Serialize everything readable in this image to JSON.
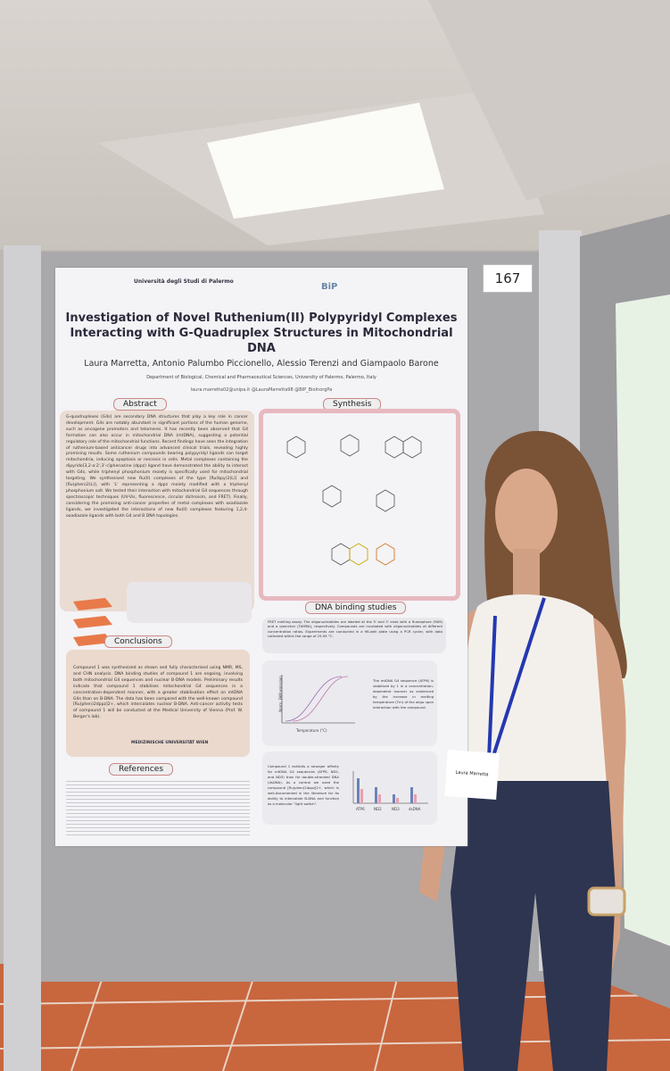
{
  "board_number": "167",
  "poster": {
    "logos": [
      "Università degli Studi di Palermo",
      "BiP"
    ],
    "title": "Investigation of Novel Ruthenium(II) Polypyridyl Complexes Interacting with G-Quadruplex Structures in Mitochondrial DNA",
    "authors": "Laura Marretta, Antonio Palumbo Piccionello, Alessio Terenzi and Giampaolo Barone",
    "affiliation": "Department of Biological, Chemical and Pharmaceutical Sciences, University of Palermo, Palermo, Italy",
    "contacts": "laura.marretta02@unipa.it    @LauraMarretta98    @BIP_BioInorgPa",
    "abstract": {
      "heading": "Abstract",
      "text": "G-quadruplexes (G4s) are secondary DNA structures that play a key role in cancer development. G4s are notably abundant in significant portions of the human genome, such as oncogene promoters and telomeres. It has recently been observed that G4 formation can also occur in mitochondrial DNA (mtDNA), suggesting a potential regulatory role of the mitochondrial functions. Recent findings have seen the integration of ruthenium-based anticancer drugs into advanced clinical trials, revealing highly promising results. Some ruthenium compounds bearing polypyridyl ligands can target mitochondria, inducing apoptosis or necrosis in cells. Metal complexes containing the dipyrido[3,2-a:2',3'-c]phenazine (dppz) ligand have demonstrated the ability to interact with G4s, while triphenyl phosphonium moiety is specifically used for mitochondrial targeting. We synthesised new Ru(II) complexes of the type [Ru(bpy)2(L)] and [Ru(phen)2(L)], with 'L' representing a dppz moiety modified with a triphenyl phosphonium salt. We tested their interaction with mitochondrial G4 sequences through spectroscopic techniques (UV-Vis, fluorescence, circular dichroism, and FRET). Finally, considering the promising anti-cancer properties of metal complexes with oxadiazole ligands, we investigated the interactions of new Ru(II) complexes featuring 1,2,4-oxadiazole ligands with both G4 and B DNA topologies."
    },
    "synthesis": {
      "heading": "Synthesis"
    },
    "dna_binding": {
      "heading": "DNA binding studies",
      "fret_text": "FRET melting assay. The oligonucleotides are labeled at the 5' and 3' ends with a fluorophore (FAM) and a quencher (TAMRA), respectively. Compounds are incubated with oligonucleotides at different concentration ratios. Experiments are conducted in a 96-well plate using a PCR cycler, with data collected within the range of 25-95 °C.",
      "melting_text": "The mtDNA G4 sequence (ATP6) is stabilised by 1 in a concentration-dependent manner as evidenced by the increase in melting temperature (Tm) of the oligo upon interaction with the compound.",
      "plot_y_label": "Norm. FAM emission",
      "plot_x_label": "Temperature (°C)",
      "affinity_text": "Compound 1 exhibits a stronger affinity for mtDNA G4 sequences (ATP6, ND2, and ND3) than for double-stranded DNA (dsDNA). As a control we used the compound [Ru(phen)2dppz]2+, which is well-documented in the literature for its ability to intercalate B-DNA and function as a molecular \"light switch\".",
      "bar_categories": [
        "ATP6",
        "ND2",
        "ND3",
        "dsDNA"
      ]
    },
    "conclusions": {
      "heading": "Conclusions",
      "text": "Compound 1 was synthesized as shown and fully characterised using NMR, MS, and CHN analysis. DNA binding studies of compound 1 are ongoing, involving both mitochondrial G4 sequences and nuclear B-DNA models. Preliminary results indicate that compound 1 stabilises mitochondrial G4 sequences in a concentration-dependent manner, with a greater stabilisation effect on mtDNA G4s than on B-DNA. The data has been compared with the well-known compound [Ru(phen)2dppz]2+, which intercalates nuclear B-DNA. Anti-cancer activity tests of compound 1 will be conducted at the Medical University of Vienna (Prof. W. Berger's lab).",
      "partner": "MEDIZINISCHE UNIVERSITÄT WIEN"
    },
    "references": {
      "heading": "References"
    }
  },
  "badge": {
    "name": "Laura Marretta"
  }
}
